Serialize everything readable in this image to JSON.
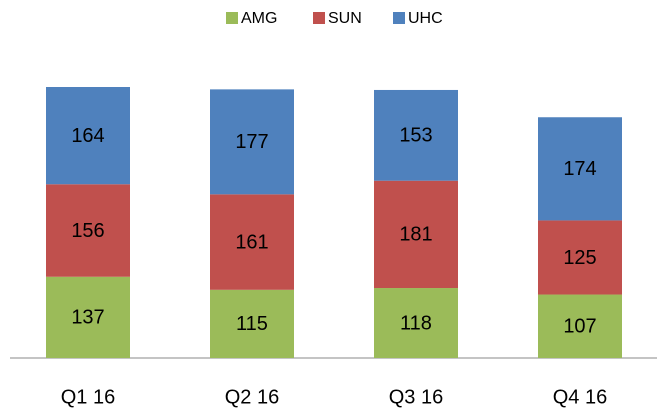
{
  "chart_data": {
    "type": "stacked_bar",
    "categories": [
      "Q1 16",
      "Q2 16",
      "Q3 16",
      "Q4 16"
    ],
    "series": [
      {
        "name": "AMG",
        "color": "#9bbb59",
        "values": [
          137,
          115,
          118,
          107
        ]
      },
      {
        "name": "SUN",
        "color": "#c0504d",
        "values": [
          156,
          161,
          181,
          125
        ]
      },
      {
        "name": "UHC",
        "color": "#4f81bd",
        "values": [
          164,
          177,
          153,
          174
        ]
      }
    ],
    "legend": "top"
  }
}
